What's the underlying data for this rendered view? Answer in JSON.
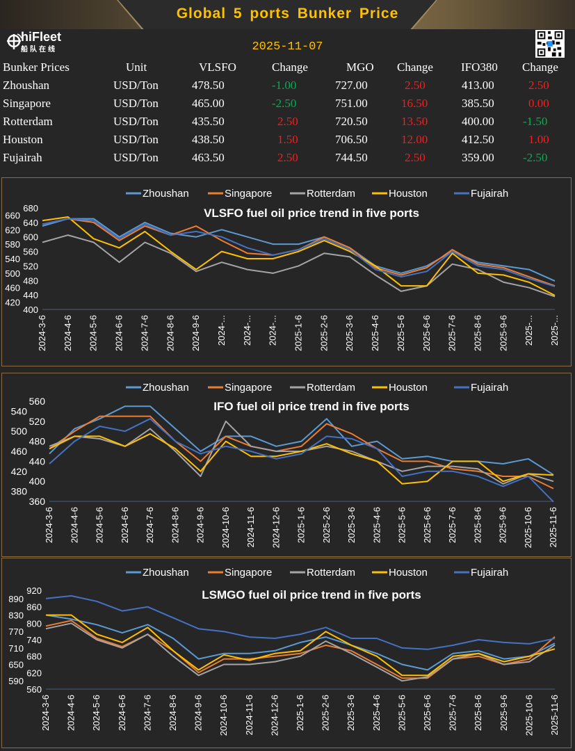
{
  "header": {
    "title": "Global  5  ports   Bunker  Price",
    "logo_text": "hiFleet",
    "logo_cn": "船队在线",
    "date": "2025-11-07"
  },
  "table": {
    "columns": [
      "Bunker Prices",
      "Unit",
      "VLSFO",
      "Change",
      "MGO",
      "Change",
      "IFO380",
      "Change"
    ],
    "rows": [
      [
        "Zhoushan",
        "USD/Ton",
        "478.50",
        "-1.00",
        "727.00",
        "2.50",
        "413.00",
        "2.50"
      ],
      [
        "Singapore",
        "USD/Ton",
        "465.00",
        "-2.50",
        "751.00",
        "16.50",
        "385.50",
        "0.00"
      ],
      [
        "Rotterdam",
        "USD/Ton",
        "435.50",
        "2.50",
        "720.50",
        "13.50",
        "400.00",
        "-1.50"
      ],
      [
        "Houston",
        "USD/Ton",
        "438.50",
        "1.50",
        "706.50",
        "12.00",
        "412.50",
        "1.00"
      ],
      [
        "Fujairah",
        "USD/Ton",
        "463.50",
        "2.50",
        "744.50",
        "2.50",
        "359.00",
        "-2.50"
      ]
    ]
  },
  "colors": {
    "up": "#ff1a1a",
    "down": "#00b050",
    "accent": "#ffc000"
  },
  "chart_data": [
    {
      "type": "line",
      "title": "VLSFO fuel oil price trend in five ports",
      "ylim": [
        400,
        680
      ],
      "ytick_step": 20,
      "categories": [
        "2024-3-6",
        "2024-4-6",
        "2024-5-6",
        "2024-6-6",
        "2024-7-6",
        "2024-8-6",
        "2024-9-6",
        "2024-...",
        "2024-...",
        "2024-...",
        "2025-1-6",
        "2025-2-6",
        "2025-3-6",
        "2025-4-6",
        "2025-5-6",
        "2025-6-6",
        "2025-7-6",
        "2025-8-6",
        "2025-9-6",
        "2025-...",
        "2025-..."
      ],
      "legend": "top",
      "series": [
        {
          "name": "Zhoushan",
          "color": "#5b9bd5",
          "values": [
            630,
            650,
            650,
            600,
            640,
            610,
            600,
            620,
            600,
            580,
            580,
            600,
            570,
            520,
            500,
            520,
            560,
            530,
            520,
            510,
            478.5
          ]
        },
        {
          "name": "Singapore",
          "color": "#ed7d31",
          "values": [
            635,
            650,
            640,
            590,
            630,
            605,
            630,
            590,
            555,
            550,
            565,
            600,
            570,
            515,
            495,
            515,
            565,
            525,
            515,
            490,
            465
          ]
        },
        {
          "name": "Rotterdam",
          "color": "#a5a5a5",
          "values": [
            585,
            605,
            585,
            530,
            585,
            555,
            505,
            530,
            510,
            500,
            520,
            555,
            545,
            495,
            450,
            465,
            525,
            510,
            475,
            460,
            435.5
          ]
        },
        {
          "name": "Houston",
          "color": "#ffc000",
          "values": [
            645,
            655,
            595,
            570,
            615,
            560,
            510,
            560,
            540,
            540,
            560,
            590,
            560,
            520,
            465,
            465,
            555,
            500,
            495,
            475,
            438.5
          ]
        },
        {
          "name": "Fujairah",
          "color": "#4472c4",
          "values": [
            635,
            650,
            645,
            595,
            635,
            605,
            615,
            600,
            570,
            550,
            565,
            595,
            565,
            510,
            490,
            505,
            560,
            520,
            510,
            485,
            463.5
          ]
        }
      ]
    },
    {
      "type": "line",
      "title": "IFO fuel oil price trend in five ports",
      "ylim": [
        360,
        560
      ],
      "ytick_step": 20,
      "categories": [
        "2024-3-6",
        "2024-4-6",
        "2024-5-6",
        "2024-6-6",
        "2024-7-6",
        "2024-8-6",
        "2024-9-6",
        "2024-10-6",
        "2024-11-6",
        "2024-12-6",
        "2025-1-6",
        "2025-2-6",
        "2025-3-6",
        "2025-4-6",
        "2025-5-6",
        "2025-6-6",
        "2025-7-6",
        "2025-8-6",
        "2025-9-6",
        "2025-10-6",
        "2025-11-6"
      ],
      "legend": "top",
      "series": [
        {
          "name": "Zhoushan",
          "color": "#5b9bd5",
          "values": [
            455,
            505,
            525,
            550,
            550,
            505,
            460,
            490,
            490,
            470,
            480,
            525,
            470,
            480,
            445,
            450,
            440,
            440,
            435,
            445,
            413
          ]
        },
        {
          "name": "Singapore",
          "color": "#ed7d31",
          "values": [
            465,
            500,
            530,
            530,
            530,
            480,
            440,
            490,
            470,
            460,
            470,
            515,
            495,
            465,
            440,
            440,
            425,
            420,
            410,
            410,
            385.5
          ]
        },
        {
          "name": "Rotterdam",
          "color": "#a5a5a5",
          "values": [
            470,
            490,
            485,
            470,
            505,
            460,
            410,
            520,
            470,
            460,
            460,
            470,
            460,
            440,
            420,
            430,
            430,
            425,
            395,
            415,
            400
          ]
        },
        {
          "name": "Houston",
          "color": "#ffc000",
          "values": [
            465,
            490,
            490,
            470,
            495,
            465,
            420,
            480,
            450,
            450,
            460,
            475,
            455,
            440,
            395,
            400,
            440,
            440,
            400,
            415,
            412.5
          ]
        },
        {
          "name": "Fujairah",
          "color": "#4472c4",
          "values": [
            435,
            480,
            510,
            500,
            525,
            480,
            455,
            470,
            460,
            445,
            455,
            490,
            485,
            465,
            410,
            420,
            420,
            410,
            390,
            410,
            359
          ]
        }
      ]
    },
    {
      "type": "line",
      "title": "LSMGO fuel oil price trend in five ports",
      "ylim": [
        560,
        920
      ],
      "ytick_step": 30,
      "categories": [
        "2024-3-6",
        "2024-4-6",
        "2024-5-6",
        "2024-6-6",
        "2024-7-6",
        "2024-8-6",
        "2024-9-6",
        "2024-10-6",
        "2024-11-6",
        "2024-12-6",
        "2025-1-6",
        "2025-2-6",
        "2025-3-6",
        "2025-4-6",
        "2025-5-6",
        "2025-6-6",
        "2025-7-6",
        "2025-8-6",
        "2025-9-6",
        "2025-10-6",
        "2025-11-6"
      ],
      "legend": "top",
      "series": [
        {
          "name": "Zhoushan",
          "color": "#5b9bd5",
          "values": [
            830,
            815,
            795,
            765,
            795,
            745,
            670,
            690,
            690,
            700,
            730,
            750,
            720,
            690,
            650,
            630,
            690,
            700,
            670,
            680,
            727
          ]
        },
        {
          "name": "Singapore",
          "color": "#ed7d31",
          "values": [
            790,
            810,
            745,
            715,
            760,
            700,
            620,
            670,
            670,
            680,
            690,
            720,
            700,
            650,
            600,
            600,
            670,
            680,
            650,
            670,
            751
          ]
        },
        {
          "name": "Rotterdam",
          "color": "#a5a5a5",
          "values": [
            780,
            800,
            740,
            710,
            760,
            680,
            610,
            650,
            650,
            660,
            680,
            735,
            690,
            640,
            590,
            605,
            670,
            690,
            650,
            660,
            720.5
          ]
        },
        {
          "name": "Houston",
          "color": "#ffc000",
          "values": [
            830,
            830,
            760,
            730,
            785,
            700,
            630,
            685,
            665,
            690,
            700,
            770,
            720,
            680,
            610,
            610,
            680,
            690,
            660,
            680,
            706.5
          ]
        },
        {
          "name": "Fujairah",
          "color": "#4472c4",
          "values": [
            890,
            900,
            880,
            845,
            860,
            820,
            780,
            770,
            750,
            745,
            760,
            785,
            745,
            745,
            710,
            705,
            720,
            740,
            730,
            725,
            744.5
          ]
        }
      ]
    }
  ]
}
